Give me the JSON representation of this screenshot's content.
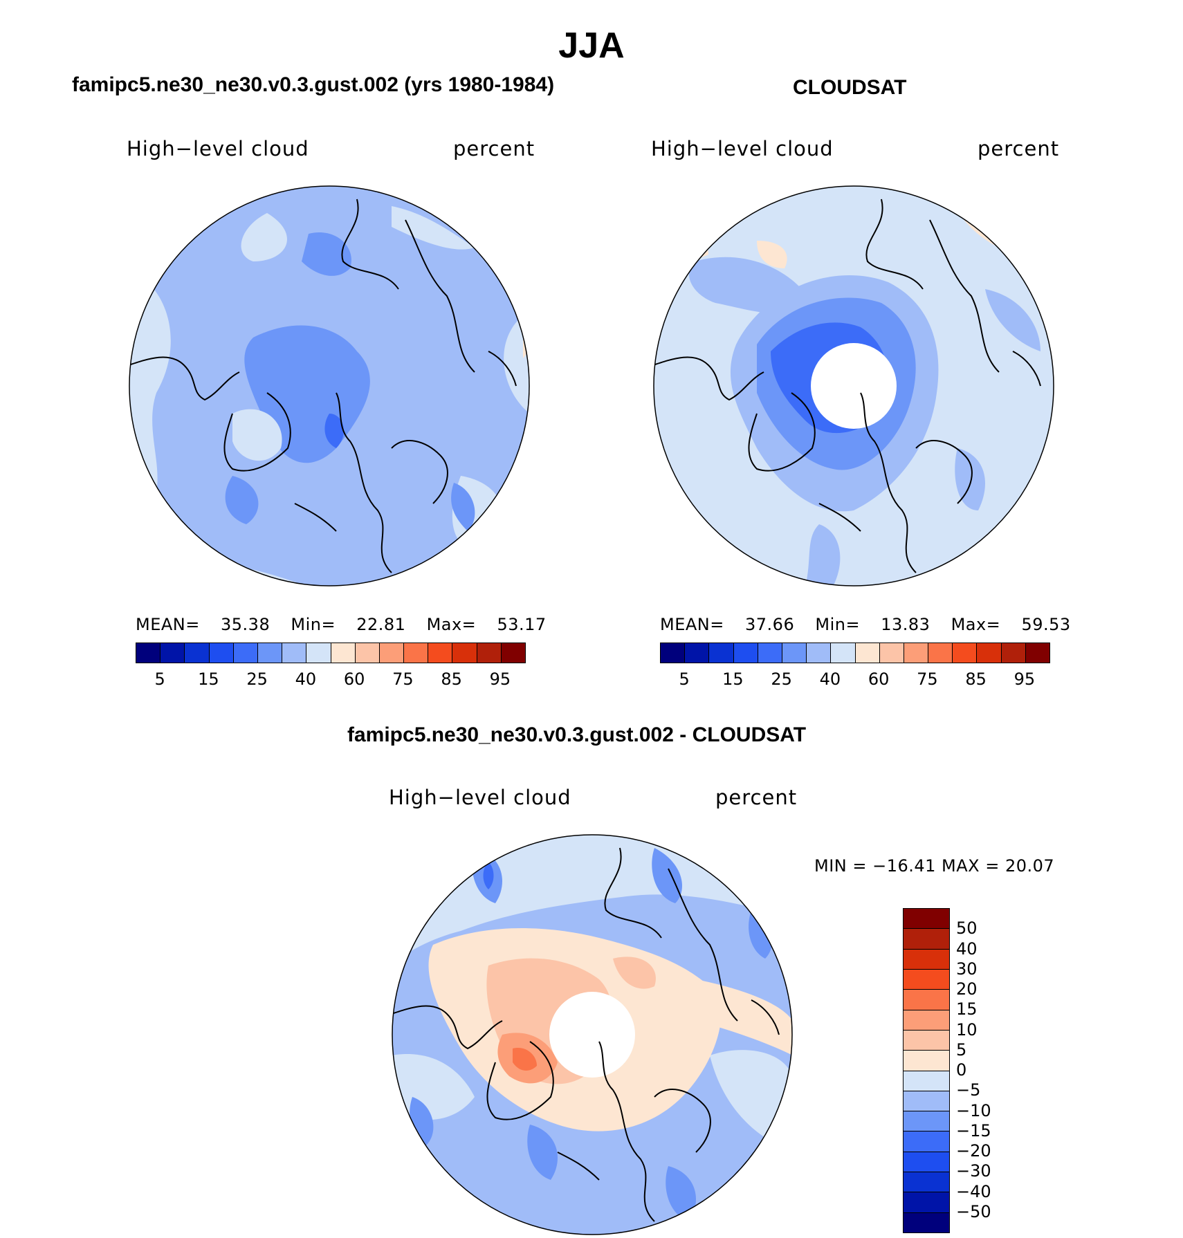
{
  "figure": {
    "title": "JJA",
    "panels": {
      "left": {
        "subtitle": "famipc5.ne30_ne30.v0.3.gust.002 (yrs 1980-1984)",
        "variable": "High−level cloud",
        "units": "percent",
        "stats": {
          "mean_label": "MEAN=",
          "mean": "35.38",
          "min_label": "Min=",
          "min": "22.81",
          "max_label": "Max=",
          "max": "53.17"
        }
      },
      "right": {
        "subtitle": "CLOUDSAT",
        "variable": "High−level cloud",
        "units": "percent",
        "stats": {
          "mean_label": "MEAN=",
          "mean": "37.66",
          "min_label": "Min=",
          "min": "13.83",
          "max_label": "Max=",
          "max": "59.53"
        }
      },
      "diff": {
        "subtitle": "famipc5.ne30_ne30.v0.3.gust.002 - CLOUDSAT",
        "variable": "High−level cloud",
        "units": "percent",
        "minmax": "MIN = −16.41 MAX =   20.07"
      }
    },
    "colorbar_top": {
      "colors": [
        "#00007c",
        "#0014a8",
        "#0a32d2",
        "#1e4ef0",
        "#3c6cf8",
        "#6c96f8",
        "#a0bcf8",
        "#d4e4f8",
        "#fde6d2",
        "#fcc4a8",
        "#fc9e78",
        "#fa7448",
        "#f44c1e",
        "#d8300a",
        "#b0200a",
        "#800000"
      ],
      "tick_labels": [
        "5",
        "15",
        "25",
        "40",
        "60",
        "75",
        "85",
        "95"
      ]
    },
    "colorbar_diff": {
      "colors": [
        "#800000",
        "#b0200a",
        "#d8300a",
        "#f44c1e",
        "#fa7448",
        "#fc9e78",
        "#fcc4a8",
        "#fde6d2",
        "#d4e4f8",
        "#a0bcf8",
        "#6c96f8",
        "#3c6cf8",
        "#1e4ef0",
        "#0a32d2",
        "#0014a8",
        "#00007c"
      ],
      "tick_labels": [
        "50",
        "40",
        "30",
        "20",
        "15",
        "10",
        "5",
        "0",
        "−5",
        "−10",
        "−15",
        "−20",
        "−30",
        "−40",
        "−50"
      ]
    }
  }
}
